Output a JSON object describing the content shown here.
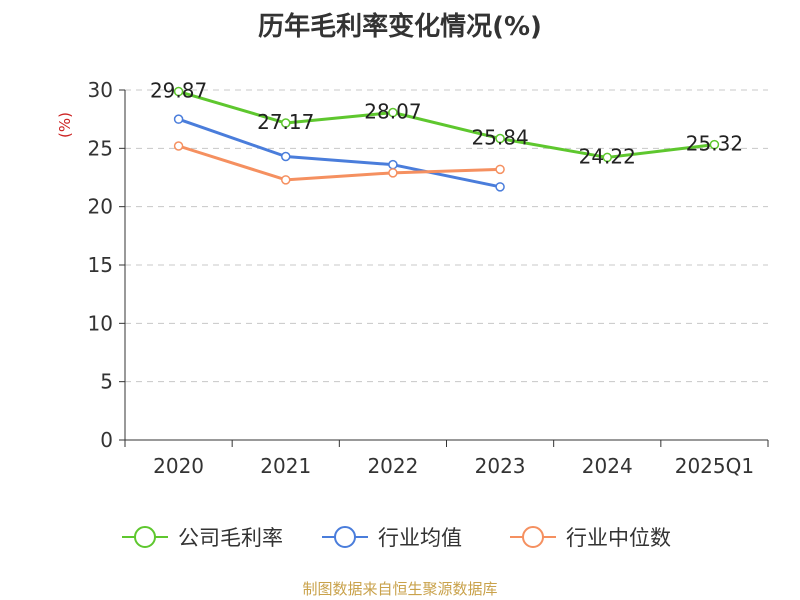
{
  "chart_data": {
    "type": "line",
    "title": "历年毛利率变化情况(%)",
    "ylabel": "(%)",
    "categories": [
      "2020",
      "2021",
      "2022",
      "2023",
      "2024",
      "2025Q1"
    ],
    "yticks": [
      "0",
      "5",
      "10",
      "15",
      "20",
      "25",
      "30"
    ],
    "ylim": [
      0,
      30
    ],
    "grid": "horizontal dashed",
    "legend_position": "bottom",
    "series": [
      {
        "name": "公司毛利率",
        "color": "#5ec72e",
        "values": [
          29.87,
          27.17,
          28.07,
          25.84,
          24.22,
          25.32
        ],
        "labels": [
          "29.87",
          "27.17",
          "28.07",
          "25.84",
          "24.22",
          "25.32"
        ]
      },
      {
        "name": "行业均值",
        "color": "#4a7ddb",
        "values": [
          27.5,
          24.3,
          23.6,
          21.7,
          null,
          null
        ]
      },
      {
        "name": "行业中位数",
        "color": "#f59060",
        "values": [
          25.2,
          22.3,
          22.9,
          23.2,
          null,
          null
        ]
      }
    ]
  },
  "footer": "制图数据来自恒生聚源数据库"
}
